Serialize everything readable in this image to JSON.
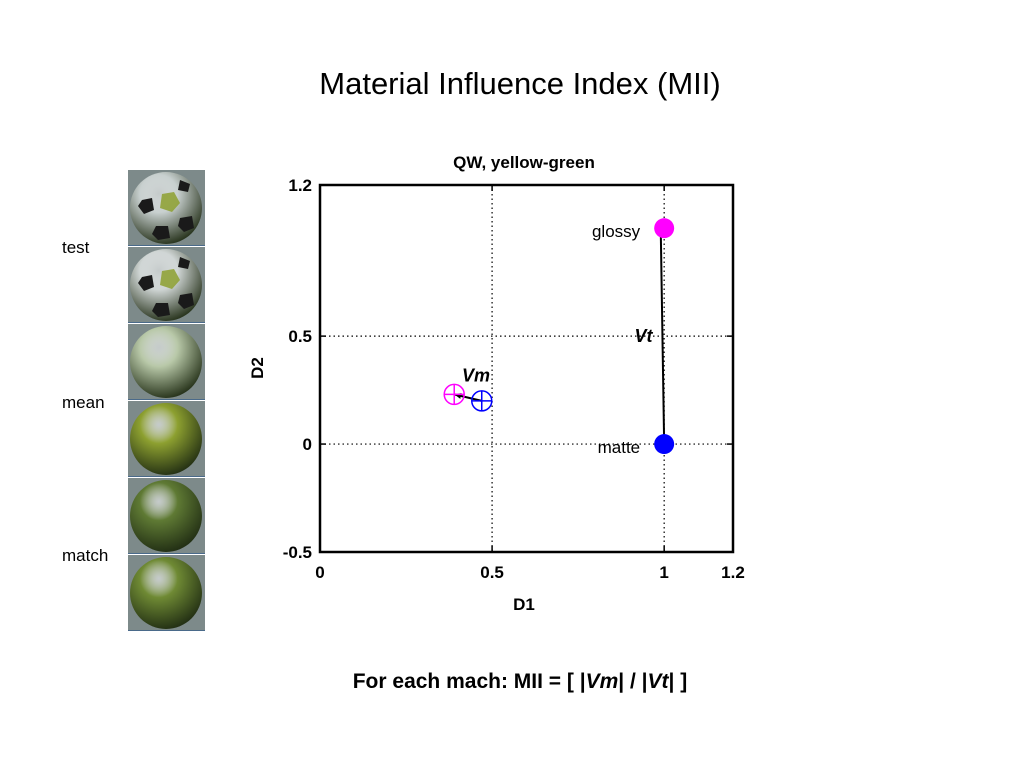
{
  "slide": {
    "title": "Material Influence Index (MII)",
    "labels": {
      "test": "test",
      "mean": "mean",
      "match": "match"
    },
    "footer": {
      "prefix": "For each mach: MII = [ |",
      "vm": "Vm",
      "mid": "| / |",
      "vt": "Vt",
      "suffix": "| ]"
    }
  },
  "thumbnails": [
    {
      "kind": "soccer-ball",
      "color": "#c8d0cf",
      "patch": "#8da030"
    },
    {
      "kind": "soccer-ball",
      "color": "#d0d6d5",
      "patch": "#8da030"
    },
    {
      "kind": "sphere",
      "color": "#b8c8a8"
    },
    {
      "kind": "sphere",
      "color": "#8da030"
    },
    {
      "kind": "sphere",
      "color": "#5f7a34"
    },
    {
      "kind": "sphere",
      "color": "#6f8a34"
    }
  ],
  "chart_data": {
    "type": "scatter",
    "title": "QW, yellow-green",
    "xlabel": "D1",
    "ylabel": "D2",
    "xlim": [
      0,
      1.2
    ],
    "ylim": [
      -0.5,
      1.2
    ],
    "xticks": [
      0,
      0.5,
      1,
      1.2
    ],
    "yticks": [
      -0.5,
      0,
      0.5,
      1.2
    ],
    "grid": "dotted",
    "points": [
      {
        "label": "glossy",
        "x": 1.0,
        "y": 1.0,
        "color": "#ff00ff",
        "marker": "filled-circle"
      },
      {
        "label": "matte",
        "x": 1.0,
        "y": 0.0,
        "color": "#0000ff",
        "marker": "filled-circle"
      },
      {
        "label": "",
        "x": 0.39,
        "y": 0.23,
        "color": "#ff00ff",
        "marker": "circle-plus"
      },
      {
        "label": "",
        "x": 0.47,
        "y": 0.2,
        "color": "#0000ff",
        "marker": "circle-plus"
      }
    ],
    "vectors": [
      {
        "label": "Vt",
        "from": [
          1.0,
          0.0
        ],
        "to": [
          0.99,
          1.0
        ]
      },
      {
        "label": "Vm",
        "from": [
          0.47,
          0.2
        ],
        "to": [
          0.39,
          0.23
        ]
      }
    ]
  }
}
